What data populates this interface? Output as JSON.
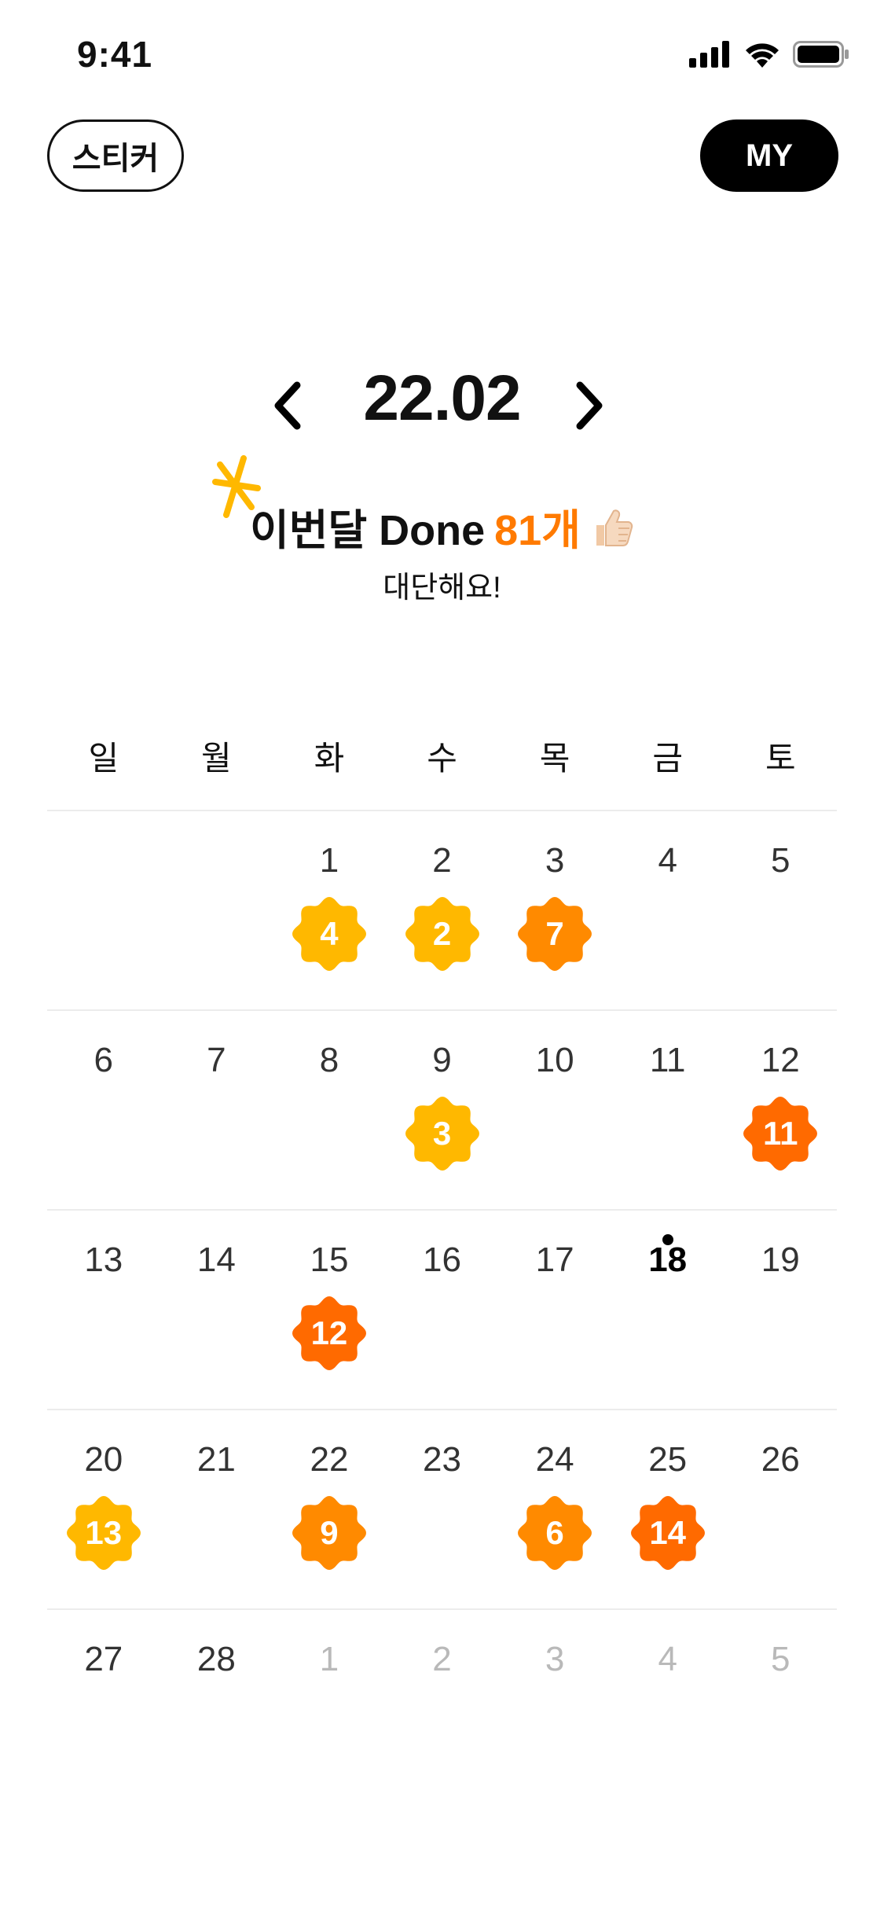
{
  "status": {
    "time": "9:41"
  },
  "header": {
    "sticker_label": "스티커",
    "my_label": "MY"
  },
  "month": {
    "label": "22.02"
  },
  "summary": {
    "prefix": "이번달 Done",
    "count": "81개",
    "praise": "대단해요!"
  },
  "weekdays": [
    "일",
    "월",
    "화",
    "수",
    "목",
    "금",
    "토"
  ],
  "colors": {
    "yellow": "#FFB800",
    "orange": "#FF8A00",
    "deep_orange": "#FF6A00",
    "accent": "#FF7A00"
  },
  "weeks": [
    [
      {
        "day": "",
        "muted": false,
        "today": false,
        "badge": "",
        "color": ""
      },
      {
        "day": "",
        "muted": false,
        "today": false,
        "badge": "",
        "color": ""
      },
      {
        "day": "1",
        "muted": false,
        "today": false,
        "badge": "4",
        "color": "yellow"
      },
      {
        "day": "2",
        "muted": false,
        "today": false,
        "badge": "2",
        "color": "yellow"
      },
      {
        "day": "3",
        "muted": false,
        "today": false,
        "badge": "7",
        "color": "orange"
      },
      {
        "day": "4",
        "muted": false,
        "today": false,
        "badge": "",
        "color": ""
      },
      {
        "day": "5",
        "muted": false,
        "today": false,
        "badge": "",
        "color": ""
      }
    ],
    [
      {
        "day": "6",
        "muted": false,
        "today": false,
        "badge": "",
        "color": ""
      },
      {
        "day": "7",
        "muted": false,
        "today": false,
        "badge": "",
        "color": ""
      },
      {
        "day": "8",
        "muted": false,
        "today": false,
        "badge": "",
        "color": ""
      },
      {
        "day": "9",
        "muted": false,
        "today": false,
        "badge": "3",
        "color": "yellow"
      },
      {
        "day": "10",
        "muted": false,
        "today": false,
        "badge": "",
        "color": ""
      },
      {
        "day": "11",
        "muted": false,
        "today": false,
        "badge": "",
        "color": ""
      },
      {
        "day": "12",
        "muted": false,
        "today": false,
        "badge": "11",
        "color": "deep_orange"
      }
    ],
    [
      {
        "day": "13",
        "muted": false,
        "today": false,
        "badge": "",
        "color": ""
      },
      {
        "day": "14",
        "muted": false,
        "today": false,
        "badge": "",
        "color": ""
      },
      {
        "day": "15",
        "muted": false,
        "today": false,
        "badge": "12",
        "color": "deep_orange"
      },
      {
        "day": "16",
        "muted": false,
        "today": false,
        "badge": "",
        "color": ""
      },
      {
        "day": "17",
        "muted": false,
        "today": false,
        "badge": "",
        "color": ""
      },
      {
        "day": "18",
        "muted": false,
        "today": true,
        "badge": "",
        "color": ""
      },
      {
        "day": "19",
        "muted": false,
        "today": false,
        "badge": "",
        "color": ""
      }
    ],
    [
      {
        "day": "20",
        "muted": false,
        "today": false,
        "badge": "13",
        "color": "yellow"
      },
      {
        "day": "21",
        "muted": false,
        "today": false,
        "badge": "",
        "color": ""
      },
      {
        "day": "22",
        "muted": false,
        "today": false,
        "badge": "9",
        "color": "orange"
      },
      {
        "day": "23",
        "muted": false,
        "today": false,
        "badge": "",
        "color": ""
      },
      {
        "day": "24",
        "muted": false,
        "today": false,
        "badge": "6",
        "color": "orange"
      },
      {
        "day": "25",
        "muted": false,
        "today": false,
        "badge": "14",
        "color": "deep_orange"
      },
      {
        "day": "26",
        "muted": false,
        "today": false,
        "badge": "",
        "color": ""
      }
    ],
    [
      {
        "day": "27",
        "muted": false,
        "today": false,
        "badge": "",
        "color": ""
      },
      {
        "day": "28",
        "muted": false,
        "today": false,
        "badge": "",
        "color": ""
      },
      {
        "day": "1",
        "muted": true,
        "today": false,
        "badge": "",
        "color": ""
      },
      {
        "day": "2",
        "muted": true,
        "today": false,
        "badge": "",
        "color": ""
      },
      {
        "day": "3",
        "muted": true,
        "today": false,
        "badge": "",
        "color": ""
      },
      {
        "day": "4",
        "muted": true,
        "today": false,
        "badge": "",
        "color": ""
      },
      {
        "day": "5",
        "muted": true,
        "today": false,
        "badge": "",
        "color": ""
      }
    ]
  ]
}
